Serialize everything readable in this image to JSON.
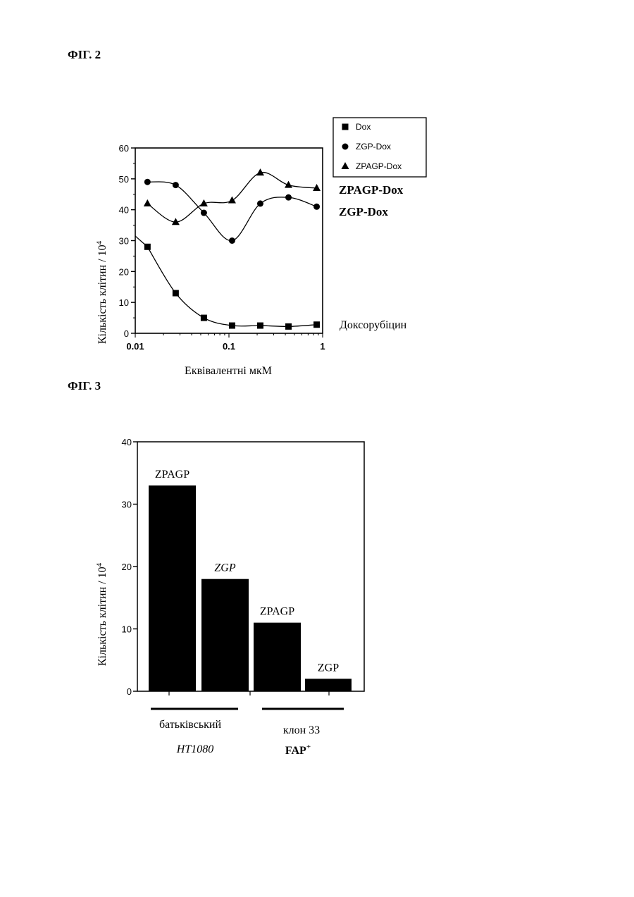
{
  "figures": {
    "fig2_label": "ФІГ. 2",
    "fig3_label": "ФІГ. 3"
  },
  "chart_data": [
    {
      "type": "line",
      "x": [
        0.0135,
        0.027,
        0.054,
        0.108,
        0.216,
        0.432,
        0.864
      ],
      "xscale": "log",
      "xlim": [
        0.01,
        1
      ],
      "xticks": [
        "0.01",
        "0.1",
        "1"
      ],
      "ylim": [
        0,
        60
      ],
      "yticks": [
        "0",
        "10",
        "20",
        "30",
        "40",
        "50",
        "60"
      ],
      "xlabel": "Еквівалентні мкМ",
      "ylabel": "Кількість клітин / 10",
      "ylabel_sup": "4",
      "legend_position": "top-right",
      "series": [
        {
          "name": "Dox",
          "marker": "square",
          "values": [
            28,
            13,
            5,
            2.5,
            2.5,
            2.2,
            2.8
          ]
        },
        {
          "name": "ZGP-Dox",
          "marker": "circle",
          "values": [
            49,
            48,
            39,
            30,
            42,
            44,
            41
          ]
        },
        {
          "name": "ZPAGP-Dox",
          "marker": "triangle",
          "values": [
            42,
            36,
            42,
            43,
            52,
            48,
            47
          ]
        }
      ],
      "annotations": [
        "ZPAGP-Dox",
        "ZGP-Dox",
        "Доксорубіцин"
      ]
    },
    {
      "type": "bar",
      "categories": [
        "ZPAGP",
        "ZGP",
        "ZPAGP",
        "ZGP"
      ],
      "values": [
        33,
        18,
        11,
        2
      ],
      "ylim": [
        0,
        40
      ],
      "yticks": [
        "0",
        "10",
        "20",
        "30",
        "40"
      ],
      "ylabel": "Кількість клітин / 10",
      "ylabel_sup": "4",
      "groups": [
        {
          "label": "батьківський",
          "sublabel": "HT1080"
        },
        {
          "label": "клон 33",
          "sublabel": "FAP",
          "sublabel_sup": "+"
        }
      ]
    }
  ]
}
